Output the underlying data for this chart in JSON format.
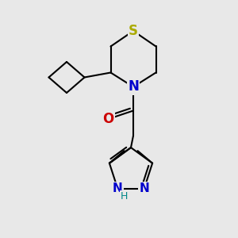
{
  "bg_color": "#e8e8e8",
  "bond_color": "#000000",
  "bond_width": 1.5,
  "S_color": "#aaaa00",
  "N_color": "#0000cc",
  "O_color": "#cc0000",
  "H_color": "#008888",
  "figsize": [
    3.0,
    3.0
  ],
  "dpi": 100,
  "xlim": [
    0,
    10
  ],
  "ylim": [
    0,
    10
  ]
}
